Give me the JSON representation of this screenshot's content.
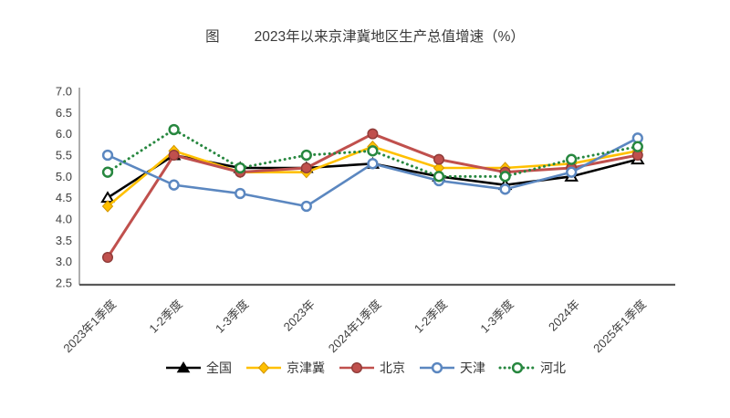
{
  "title": {
    "prefix": "图",
    "text": "2023年以来京津冀地区生产总值增速（%）"
  },
  "chart_data": {
    "type": "line",
    "categories": [
      "2023年1季度",
      "1-2季度",
      "1-3季度",
      "2023年",
      "2024年1季度",
      "1-2季度",
      "1-3季度",
      "2024年",
      "2025年1季度"
    ],
    "series": [
      {
        "name": "全国",
        "color": "#000000",
        "marker": "triangle",
        "line": "solid",
        "values": [
          4.5,
          5.5,
          5.2,
          5.2,
          5.3,
          5.0,
          4.8,
          5.0,
          5.4
        ]
      },
      {
        "name": "京津冀",
        "color": "#FFC000",
        "marker": "diamond",
        "line": "solid",
        "values": [
          4.3,
          5.6,
          5.1,
          5.1,
          5.7,
          5.2,
          5.2,
          5.3,
          5.6
        ]
      },
      {
        "name": "北京",
        "color": "#C0504D",
        "marker": "circle-filled",
        "line": "solid",
        "values": [
          3.1,
          5.5,
          5.1,
          5.2,
          6.0,
          5.4,
          5.1,
          5.2,
          5.5
        ]
      },
      {
        "name": "天津",
        "color": "#5B87C0",
        "marker": "circle-open",
        "line": "solid",
        "values": [
          5.5,
          4.8,
          4.6,
          4.3,
          5.3,
          4.9,
          4.7,
          5.1,
          5.9
        ]
      },
      {
        "name": "河北",
        "color": "#27873F",
        "marker": "circle-open",
        "line": "dotted",
        "values": [
          5.1,
          6.1,
          5.2,
          5.5,
          5.6,
          5.0,
          5.0,
          5.4,
          5.7
        ]
      }
    ],
    "yticks": [
      "7.0",
      "6.5",
      "6.0",
      "5.5",
      "5.0",
      "4.5",
      "4.0",
      "3.5",
      "3.0",
      "2.5"
    ],
    "ylim": [
      2.5,
      7.0
    ],
    "ytick_step": 0.5,
    "grid": false,
    "legend_position": "bottom",
    "axis_color": "#595959"
  }
}
